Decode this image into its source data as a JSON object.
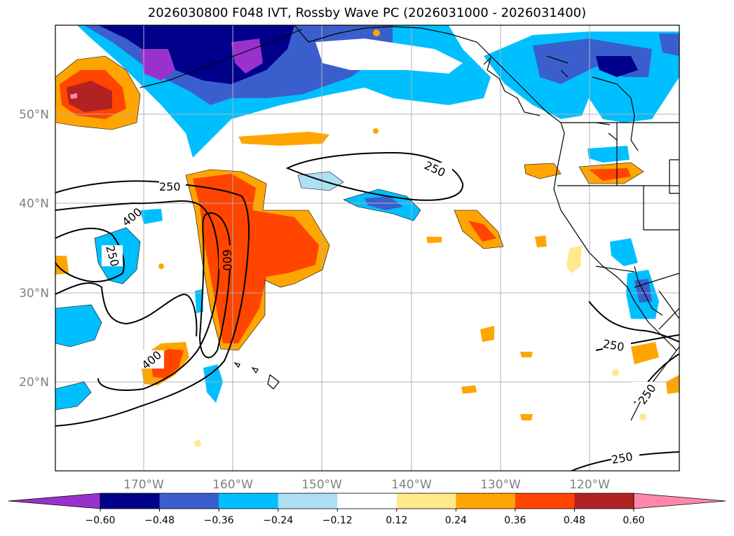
{
  "title": "2026030800 F048 IVT, Rossby Wave PC (2026031000 - 2026031400)",
  "map": {
    "lat_labels": [
      "50°N",
      "40°N",
      "30°N",
      "20°N"
    ],
    "lon_labels": [
      "170°W",
      "160°W",
      "150°W",
      "140°W",
      "130°W",
      "120°W"
    ],
    "contour_labels": [
      "250",
      "400",
      "250",
      "600",
      "400",
      "250",
      "250",
      "250",
      "250"
    ],
    "gridlines": true
  },
  "colorbar": {
    "tick_labels": [
      "−0.60",
      "−0.48",
      "−0.36",
      "−0.24",
      "−0.12",
      "0.12",
      "0.24",
      "0.36",
      "0.48",
      "0.60"
    ],
    "colors": [
      "#9932CC",
      "#00008B",
      "#3A5FCD",
      "#00BFFF",
      "#ADDFF5",
      "#FFFFFF",
      "#FFE98A",
      "#FFA500",
      "#FF4500",
      "#B22222",
      "#FF88AA"
    ]
  }
}
